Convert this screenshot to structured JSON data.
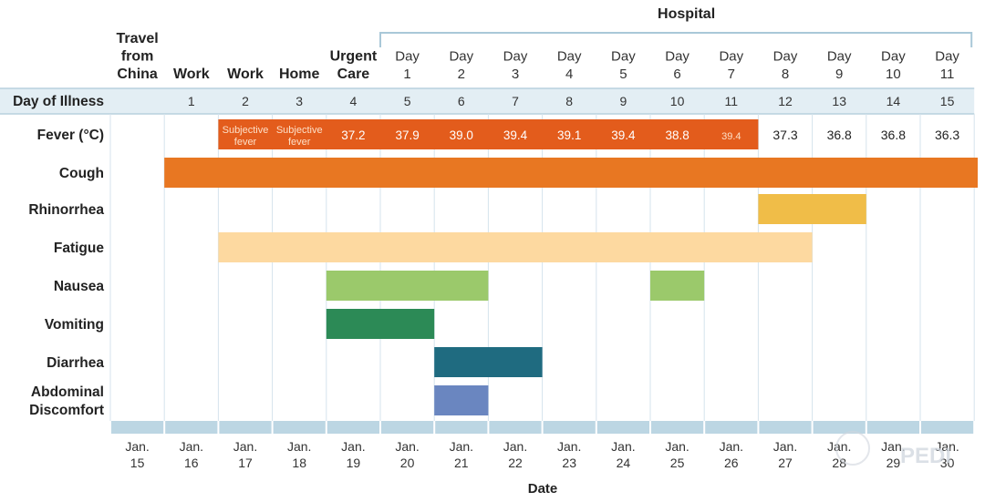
{
  "chart_data": {
    "type": "timeline",
    "xlabel": "Date",
    "hospital_label": "Hospital",
    "dates": [
      "Jan. 15",
      "Jan. 16",
      "Jan. 17",
      "Jan. 18",
      "Jan. 19",
      "Jan. 20",
      "Jan. 21",
      "Jan. 22",
      "Jan. 23",
      "Jan. 24",
      "Jan. 25",
      "Jan. 26",
      "Jan. 27",
      "Jan. 28",
      "Jan. 29",
      "Jan. 30"
    ],
    "activities": [
      "Travel from China",
      "Work",
      "Work",
      "Home",
      "Urgent Care",
      "Day 1",
      "Day 2",
      "Day 3",
      "Day 4",
      "Day 5",
      "Day 6",
      "Day 7",
      "Day 8",
      "Day 9",
      "Day 10",
      "Day 11"
    ],
    "day_of_illness_label": "Day of Illness",
    "day_of_illness": [
      "",
      "1",
      "2",
      "3",
      "4",
      "5",
      "6",
      "7",
      "8",
      "9",
      "10",
      "11",
      "12",
      "13",
      "14",
      "15"
    ],
    "fever_label": "Fever (°C)",
    "fever": [
      "",
      "",
      "Subjective fever",
      "Subjective fever",
      "37.2",
      "37.9",
      "39.0",
      "39.4",
      "39.1",
      "39.4",
      "38.8",
      "39.4",
      "37.3",
      "36.8",
      "36.8",
      "36.3"
    ],
    "fever_bar": {
      "start": "Jan. 17",
      "end": "Jan. 26",
      "color": "#e35c1c"
    },
    "symptoms": [
      {
        "name": "Cough",
        "color": "#e87722",
        "spans": [
          [
            "Jan. 16",
            "Jan. 30"
          ]
        ]
      },
      {
        "name": "Rhinorrhea",
        "color": "#f0bd48",
        "spans": [
          [
            "Jan. 27",
            "Jan. 28"
          ]
        ]
      },
      {
        "name": "Fatigue",
        "color": "#fdd9a0",
        "spans": [
          [
            "Jan. 17",
            "Jan. 27"
          ]
        ]
      },
      {
        "name": "Nausea",
        "color": "#9bc96b",
        "spans": [
          [
            "Jan. 19",
            "Jan. 21"
          ],
          [
            "Jan. 25",
            "Jan. 25"
          ]
        ]
      },
      {
        "name": "Vomiting",
        "color": "#2c8a56",
        "spans": [
          [
            "Jan. 19",
            "Jan. 20"
          ]
        ]
      },
      {
        "name": "Diarrhea",
        "color": "#1f6b80",
        "spans": [
          [
            "Jan. 21",
            "Jan. 22"
          ]
        ]
      },
      {
        "name": "Abdominal Discomfort",
        "color": "#6a86c0",
        "spans": [
          [
            "Jan. 21",
            "Jan. 21"
          ]
        ]
      }
    ],
    "grid": true
  },
  "watermark": "PEDI",
  "colors": {
    "band": "#bcd6e3",
    "grid": "#d5e3ec",
    "header_bar": "#a9c8d8"
  }
}
